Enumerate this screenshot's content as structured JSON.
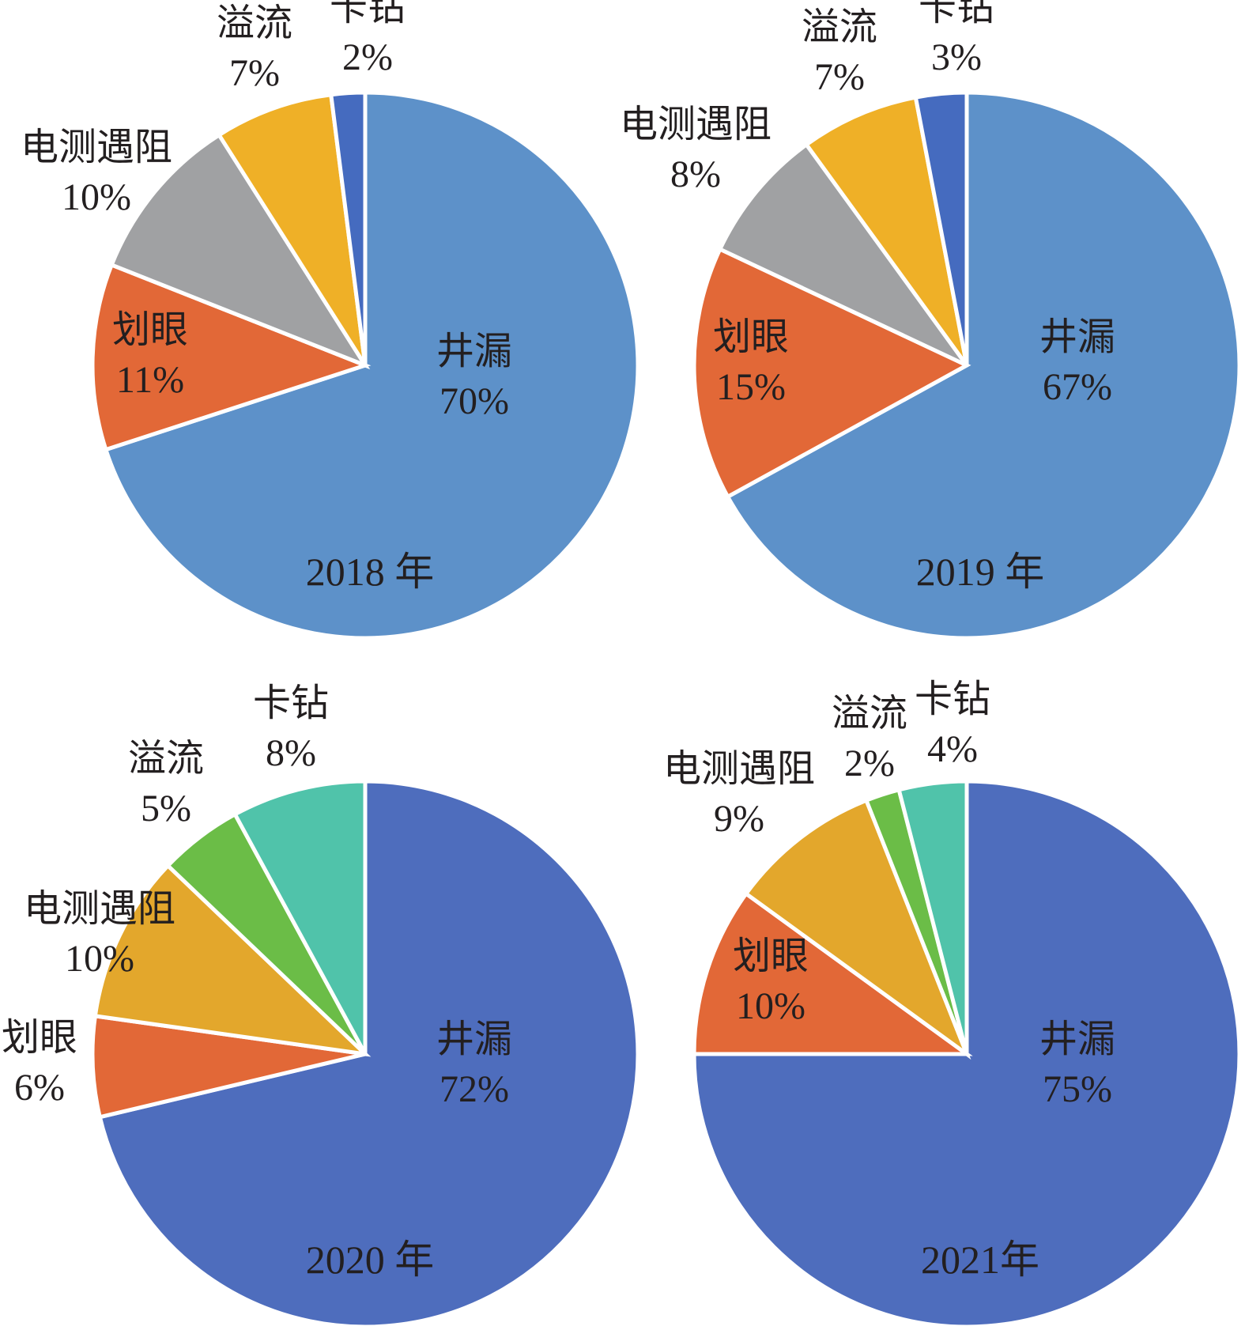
{
  "chart_data": [
    {
      "type": "pie",
      "year_label": "2018 年",
      "categories": [
        "井漏",
        "划眼",
        "电测遇阻",
        "溢流",
        "卡钻"
      ],
      "values": [
        70,
        11,
        10,
        7,
        2
      ],
      "value_labels": [
        "70%",
        "11%",
        "10%",
        "7%",
        "2%"
      ],
      "colors": [
        "#5d91c9",
        "#e26837",
        "#a0a1a3",
        "#efb027",
        "#456bbf"
      ]
    },
    {
      "type": "pie",
      "year_label": "2019 年",
      "categories": [
        "井漏",
        "划眼",
        "电测遇阻",
        "溢流",
        "卡钻"
      ],
      "values": [
        67,
        15,
        8,
        7,
        3
      ],
      "value_labels": [
        "67%",
        "15%",
        "8%",
        "7%",
        "3%"
      ],
      "colors": [
        "#5d91c9",
        "#e26837",
        "#a0a1a3",
        "#efb027",
        "#456bbf"
      ]
    },
    {
      "type": "pie",
      "year_label": "2020 年",
      "categories": [
        "井漏",
        "划眼",
        "电测遇阻",
        "溢流",
        "卡钻"
      ],
      "values": [
        72,
        6,
        10,
        5,
        8
      ],
      "value_labels": [
        "72%",
        "6%",
        "10%",
        "5%",
        "8%"
      ],
      "colors": [
        "#4e6dbd",
        "#e26837",
        "#e3a72c",
        "#6bbd47",
        "#50c3aa"
      ]
    },
    {
      "type": "pie",
      "year_label": "2021年",
      "categories": [
        "井漏",
        "划眼",
        "电测遇阻",
        "溢流",
        "卡钻"
      ],
      "values": [
        75,
        10,
        9,
        2,
        4
      ],
      "value_labels": [
        "75%",
        "10%",
        "9%",
        "2%",
        "4%"
      ],
      "colors": [
        "#4e6dbd",
        "#e26837",
        "#e3a72c",
        "#6bbd47",
        "#50c3aa"
      ]
    }
  ]
}
